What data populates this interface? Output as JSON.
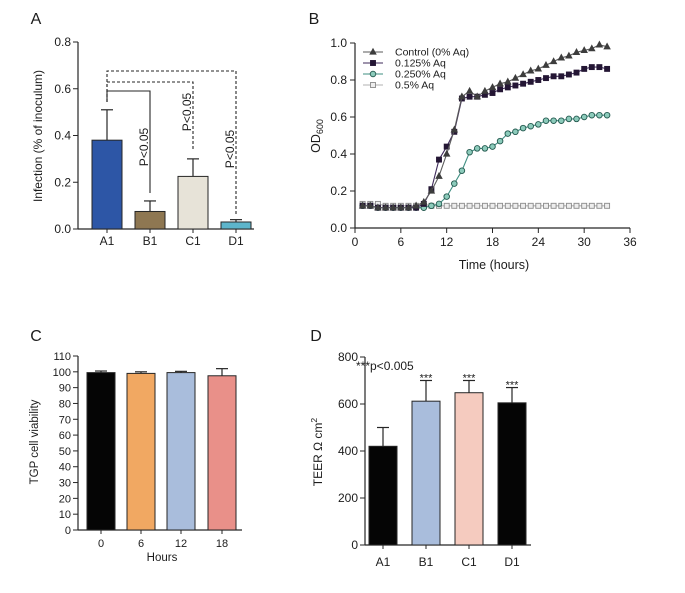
{
  "chart_data": [
    {
      "panel": "A",
      "type": "bar",
      "categories": [
        "A1",
        "B1",
        "C1",
        "D1"
      ],
      "values": [
        0.38,
        0.075,
        0.225,
        0.03
      ],
      "errors": [
        0.13,
        0.045,
        0.075,
        0.01
      ],
      "colors": [
        "#2d56a6",
        "#8e7752",
        "#e7e3d8",
        "#5db5cb"
      ],
      "ylabel": "Infection (% of inoculum)",
      "ylim": [
        0,
        0.8
      ],
      "yticks": [
        "0.0",
        "0.2",
        "0.4",
        "0.6",
        "0.8"
      ],
      "comparisons": [
        {
          "from": "A1",
          "to": "B1",
          "style": "solid",
          "label": "P<0.05"
        },
        {
          "from": "A1",
          "to": "C1",
          "style": "dashed",
          "label": "P<0.05"
        },
        {
          "from": "A1",
          "to": "D1",
          "style": "dashed",
          "label": "P<0.05"
        }
      ]
    },
    {
      "panel": "B",
      "type": "line",
      "x": [
        1,
        2,
        3,
        4,
        5,
        6,
        7,
        8,
        9,
        10,
        11,
        12,
        13,
        14,
        15,
        16,
        17,
        18,
        19,
        20,
        21,
        22,
        23,
        24,
        25,
        26,
        27,
        28,
        29,
        30,
        31,
        32,
        33
      ],
      "series": [
        {
          "name": "Control (0% Aq)",
          "marker": "triangle",
          "line_color": "#5a5a5a",
          "marker_fill": "#3d3d3d",
          "marker_stroke": "#3d3d3d",
          "values": [
            0.12,
            0.12,
            0.11,
            0.11,
            0.11,
            0.11,
            0.11,
            0.12,
            0.14,
            0.2,
            0.28,
            0.4,
            0.53,
            0.71,
            0.74,
            0.71,
            0.74,
            0.76,
            0.78,
            0.79,
            0.81,
            0.83,
            0.85,
            0.86,
            0.88,
            0.9,
            0.92,
            0.93,
            0.95,
            0.96,
            0.97,
            0.99,
            0.98
          ]
        },
        {
          "name": "0.125% Aq",
          "marker": "filled-square",
          "line_color": "#3e2a5a",
          "marker_fill": "#241634",
          "marker_stroke": "#241634",
          "values": [
            0.12,
            0.12,
            0.11,
            0.11,
            0.11,
            0.11,
            0.11,
            0.11,
            0.13,
            0.21,
            0.37,
            0.44,
            0.52,
            0.7,
            0.71,
            0.71,
            0.72,
            0.73,
            0.75,
            0.76,
            0.77,
            0.78,
            0.79,
            0.8,
            0.81,
            0.82,
            0.82,
            0.83,
            0.84,
            0.86,
            0.87,
            0.87,
            0.86
          ]
        },
        {
          "name": "0.250% Aq",
          "marker": "circle",
          "line_color": "#3f8f82",
          "marker_fill": "#8ccbbb",
          "marker_stroke": "#24594f",
          "values": [
            0.12,
            0.12,
            0.11,
            0.11,
            0.11,
            0.11,
            0.11,
            0.11,
            0.11,
            0.12,
            0.13,
            0.17,
            0.24,
            0.31,
            0.41,
            0.43,
            0.43,
            0.44,
            0.47,
            0.51,
            0.52,
            0.54,
            0.55,
            0.56,
            0.58,
            0.58,
            0.58,
            0.59,
            0.59,
            0.6,
            0.61,
            0.61,
            0.61
          ]
        },
        {
          "name": "0.5% Aq",
          "marker": "open-square",
          "line_color": "#b0b0b0",
          "marker_fill": "#ededed",
          "marker_stroke": "#8a8a8a",
          "values": [
            0.13,
            0.13,
            0.13,
            0.12,
            0.12,
            0.12,
            0.12,
            0.12,
            0.12,
            0.12,
            0.12,
            0.12,
            0.12,
            0.12,
            0.12,
            0.12,
            0.12,
            0.12,
            0.12,
            0.12,
            0.12,
            0.12,
            0.12,
            0.12,
            0.12,
            0.12,
            0.12,
            0.12,
            0.12,
            0.12,
            0.12,
            0.12,
            0.12
          ]
        }
      ],
      "xlabel": "Time (hours)",
      "ylabel": "OD",
      "ylabel_sub": "600",
      "xlim": [
        0,
        36
      ],
      "ylim": [
        0,
        1.0
      ],
      "xticks": [
        "0",
        "6",
        "12",
        "18",
        "24",
        "30",
        "36"
      ],
      "yticks": [
        "0.0",
        "0.2",
        "0.4",
        "0.6",
        "0.8",
        "1.0"
      ],
      "legend_position": "top-left"
    },
    {
      "panel": "C",
      "type": "bar",
      "categories": [
        "0",
        "6",
        "12",
        "18"
      ],
      "values": [
        99.5,
        99,
        99.5,
        97.5
      ],
      "errors": [
        1,
        1,
        0.8,
        4.5
      ],
      "colors": [
        "#050505",
        "#f1a862",
        "#a9bddc",
        "#e99089"
      ],
      "xlabel": "Hours",
      "ylabel": "TGP cell viability",
      "ylim": [
        0,
        110
      ],
      "yticks": [
        "0",
        "10",
        "20",
        "30",
        "40",
        "50",
        "60",
        "70",
        "80",
        "90",
        "100",
        "110"
      ]
    },
    {
      "panel": "D",
      "type": "bar",
      "categories": [
        "A1",
        "B1",
        "C1",
        "D1"
      ],
      "values": [
        420,
        612,
        648,
        605
      ],
      "errors": [
        80,
        88,
        52,
        65
      ],
      "colors": [
        "#050505",
        "#a9bddc",
        "#f5cbbf",
        "#050505"
      ],
      "ylabel": "TEER Ω cm",
      "ylabel_sup": "2",
      "ylim": [
        0,
        800
      ],
      "yticks": [
        "0",
        "200",
        "400",
        "600",
        "800"
      ],
      "significance": [
        {
          "category": "B1",
          "label": "***"
        },
        {
          "category": "C1",
          "label": "***"
        },
        {
          "category": "D1",
          "label": "***"
        }
      ],
      "annotation": "***p<0.005"
    }
  ]
}
